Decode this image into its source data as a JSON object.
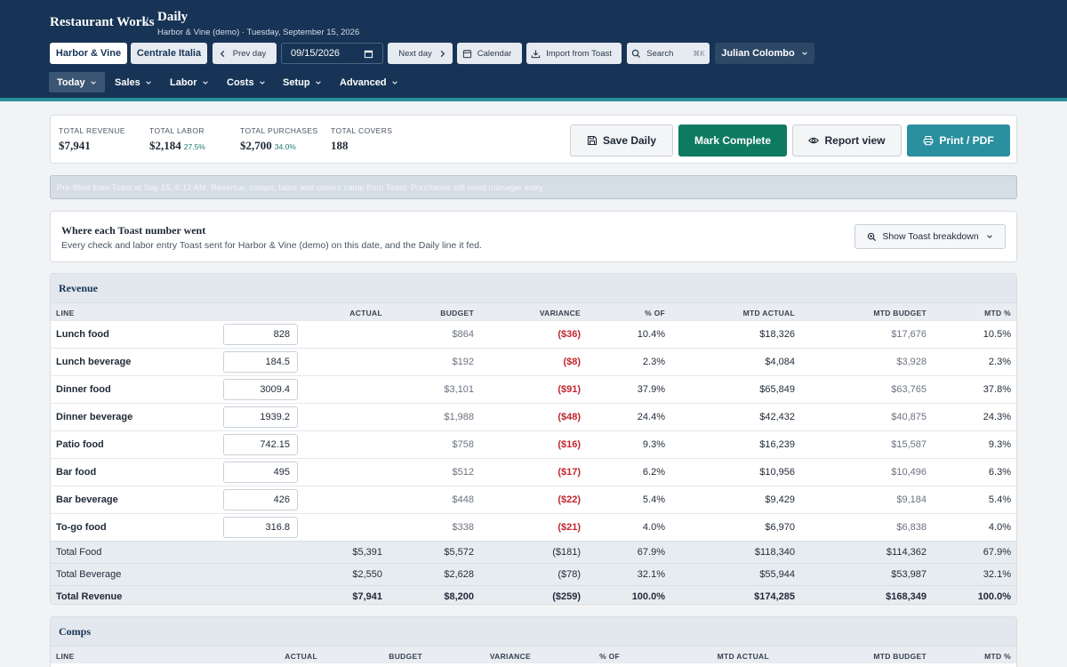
{
  "app": {
    "brand": "Restaurant Works",
    "separator": "/",
    "page_title": "Daily",
    "page_subtitle": "Harbor & Vine (demo) · Tuesday, September 15, 2026"
  },
  "toolbar": {
    "location_1": "Harbor & Vine",
    "location_2": "Centrale Italia",
    "prev_day": "Prev day",
    "date_value": "09/15/2026",
    "next_day": "Next day",
    "calendar": "Calendar",
    "import": "Import from Toast",
    "search": "Search",
    "search_shortcut": "⌘K",
    "user": "Julian Colombo"
  },
  "nav": [
    "Today",
    "Sales",
    "Labor",
    "Costs",
    "Setup",
    "Advanced"
  ],
  "summary": {
    "revenue_label": "TOTAL REVENUE",
    "revenue_value": "$7,941",
    "labor_label": "TOTAL LABOR",
    "labor_value": "$2,184",
    "labor_pct": "27.5%",
    "purchases_label": "TOTAL PURCHASES",
    "purchases_value": "$2,700",
    "purchases_pct": "34.0%",
    "covers_label": "TOTAL COVERS",
    "covers_value": "188"
  },
  "actions": {
    "save": "Save Daily",
    "complete": "Mark Complete",
    "report": "Report view",
    "print": "Print / PDF"
  },
  "notice": "Pre-filled from Toast at Sep 15, 5:12 AM. Revenue, comps, labor and covers came from Toast. Purchases still need manager entry.",
  "where": {
    "title": "Where each Toast number went",
    "subtitle": "Every check and labor entry Toast sent for Harbor & Vine (demo) on this date, and the Daily line it fed.",
    "button": "Show Toast breakdown"
  },
  "revenue": {
    "title": "Revenue",
    "columns": [
      "LINE",
      "ACTUAL",
      "BUDGET",
      "VARIANCE",
      "% OF",
      "MTD ACTUAL",
      "MTD BUDGET",
      "MTD %"
    ],
    "rows": [
      {
        "line": "Lunch food",
        "input": "828",
        "budget": "$864",
        "variance": "($36)",
        "pct": "10.4%",
        "mtd_actual": "$18,326",
        "mtd_budget": "$17,676",
        "mtd_pct": "10.5%"
      },
      {
        "line": "Lunch beverage",
        "input": "184.5",
        "budget": "$192",
        "variance": "($8)",
        "pct": "2.3%",
        "mtd_actual": "$4,084",
        "mtd_budget": "$3,928",
        "mtd_pct": "2.3%"
      },
      {
        "line": "Dinner food",
        "input": "3009.4",
        "budget": "$3,101",
        "variance": "($91)",
        "pct": "37.9%",
        "mtd_actual": "$65,849",
        "mtd_budget": "$63,765",
        "mtd_pct": "37.8%"
      },
      {
        "line": "Dinner beverage",
        "input": "1939.2",
        "budget": "$1,988",
        "variance": "($48)",
        "pct": "24.4%",
        "mtd_actual": "$42,432",
        "mtd_budget": "$40,875",
        "mtd_pct": "24.3%"
      },
      {
        "line": "Patio food",
        "input": "742.15",
        "budget": "$758",
        "variance": "($16)",
        "pct": "9.3%",
        "mtd_actual": "$16,239",
        "mtd_budget": "$15,587",
        "mtd_pct": "9.3%"
      },
      {
        "line": "Bar food",
        "input": "495",
        "budget": "$512",
        "variance": "($17)",
        "pct": "6.2%",
        "mtd_actual": "$10,956",
        "mtd_budget": "$10,496",
        "mtd_pct": "6.3%"
      },
      {
        "line": "Bar beverage",
        "input": "426",
        "budget": "$448",
        "variance": "($22)",
        "pct": "5.4%",
        "mtd_actual": "$9,429",
        "mtd_budget": "$9,184",
        "mtd_pct": "5.4%"
      },
      {
        "line": "To-go food",
        "input": "316.8",
        "budget": "$338",
        "variance": "($21)",
        "pct": "4.0%",
        "mtd_actual": "$6,970",
        "mtd_budget": "$6,838",
        "mtd_pct": "4.0%"
      }
    ],
    "totals": [
      {
        "line": "Total Food",
        "actual": "$5,391",
        "budget": "$5,572",
        "variance": "($181)",
        "pct": "67.9%",
        "mtd_actual": "$118,340",
        "mtd_budget": "$114,362",
        "mtd_pct": "67.9%"
      },
      {
        "line": "Total Beverage",
        "actual": "$2,550",
        "budget": "$2,628",
        "variance": "($78)",
        "pct": "32.1%",
        "mtd_actual": "$55,944",
        "mtd_budget": "$53,987",
        "mtd_pct": "32.1%"
      },
      {
        "line": "Total Revenue",
        "actual": "$7,941",
        "budget": "$8,200",
        "variance": "($259)",
        "pct": "100.0%",
        "mtd_actual": "$174,285",
        "mtd_budget": "$168,349",
        "mtd_pct": "100.0%"
      }
    ]
  },
  "comps": {
    "title": "Comps",
    "columns": [
      "LINE",
      "ACTUAL",
      "BUDGET",
      "VARIANCE",
      "% OF",
      "MTD ACTUAL",
      "MTD BUDGET",
      "MTD %"
    ]
  },
  "icons": {
    "prev": "chevron-left-icon",
    "next": "chevron-right-icon",
    "calendar": "calendar-icon",
    "import": "download-icon",
    "search": "search-icon",
    "save": "floppy-icon",
    "report": "eye-icon",
    "print": "printer-icon",
    "breakdown": "zoom-icon"
  },
  "colors": {
    "header": "#173456",
    "accent_teal": "#2a8f9e",
    "complete_green": "#0f7a62",
    "negative_red": "#c0262d"
  }
}
